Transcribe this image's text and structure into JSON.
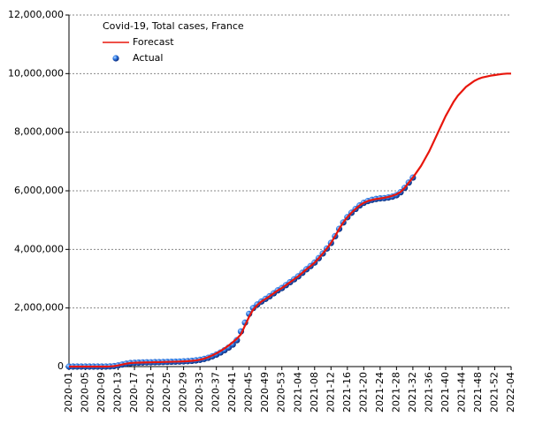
{
  "chart_data": {
    "type": "line",
    "title": "Covid-19, Total cases, France",
    "categories": [
      "2020-01",
      null,
      null,
      null,
      "2020-05",
      null,
      null,
      null,
      "2020-09",
      null,
      null,
      null,
      "2020-13",
      null,
      null,
      null,
      "2020-17",
      null,
      null,
      null,
      "2020-21",
      null,
      null,
      null,
      "2020-25",
      null,
      null,
      null,
      "2020-29",
      null,
      null,
      null,
      "2020-33",
      null,
      null,
      null,
      "2020-37",
      null,
      null,
      null,
      "2020-41",
      null,
      null,
      null,
      "2020-45",
      null,
      null,
      null,
      "2020-49",
      null,
      null,
      null,
      "2020-53",
      null,
      null,
      null,
      "2021-04",
      null,
      null,
      null,
      "2021-08",
      null,
      null,
      null,
      "2021-12",
      null,
      null,
      null,
      "2021-16",
      null,
      null,
      null,
      "2021-20",
      null,
      null,
      null,
      "2021-24",
      null,
      null,
      null,
      "2021-28",
      null,
      null,
      null,
      "2021-32",
      null,
      null,
      null,
      "2021-36",
      null,
      null,
      null,
      "2021-40",
      null,
      null,
      null,
      "2021-44",
      null,
      null,
      null,
      "2021-48",
      null,
      null,
      null,
      "2021-52",
      null,
      null,
      null,
      "2022-04"
    ],
    "series": [
      {
        "name": "Forecast",
        "mode": "line",
        "color": "#e8160c",
        "values": [
          0,
          0,
          0,
          0,
          0,
          0,
          0,
          0,
          100,
          1000,
          5000,
          16000,
          40000,
          70000,
          100000,
          120000,
          130000,
          135000,
          140000,
          143000,
          145000,
          150000,
          153000,
          157000,
          160000,
          164000,
          168000,
          172000,
          178000,
          185000,
          195000,
          210000,
          235000,
          270000,
          320000,
          380000,
          450000,
          530000,
          620000,
          720000,
          830000,
          950000,
          1100000,
          1400000,
          1700000,
          1950000,
          2100000,
          2220000,
          2310000,
          2400000,
          2500000,
          2600000,
          2680000,
          2780000,
          2880000,
          2980000,
          3080000,
          3200000,
          3320000,
          3430000,
          3550000,
          3700000,
          3860000,
          4030000,
          4220000,
          4450000,
          4700000,
          4920000,
          5100000,
          5250000,
          5380000,
          5500000,
          5590000,
          5650000,
          5690000,
          5720000,
          5740000,
          5760000,
          5790000,
          5830000,
          5880000,
          5960000,
          6100000,
          6280000,
          6450000,
          6650000,
          6850000,
          7100000,
          7350000,
          7650000,
          7950000,
          8250000,
          8550000,
          8800000,
          9050000,
          9250000,
          9400000,
          9550000,
          9650000,
          9750000,
          9820000,
          9870000,
          9900000,
          9930000,
          9950000,
          9970000,
          9990000,
          10000000,
          10000000
        ]
      },
      {
        "name": "Actual",
        "mode": "markers",
        "color": "#1e5fd8",
        "values": [
          0,
          0,
          0,
          0,
          0,
          0,
          0,
          0,
          100,
          1000,
          5000,
          16000,
          40000,
          70000,
          100000,
          120000,
          130000,
          135000,
          140000,
          143000,
          145000,
          150000,
          153000,
          157000,
          160000,
          164000,
          168000,
          172000,
          178000,
          185000,
          195000,
          210000,
          230000,
          260000,
          300000,
          350000,
          410000,
          480000,
          560000,
          650000,
          750000,
          900000,
          1200000,
          1500000,
          1800000,
          2000000,
          2120000,
          2220000,
          2310000,
          2400000,
          2500000,
          2600000,
          2680000,
          2780000,
          2880000,
          2980000,
          3080000,
          3200000,
          3320000,
          3430000,
          3550000,
          3700000,
          3860000,
          4030000,
          4220000,
          4450000,
          4700000,
          4920000,
          5100000,
          5250000,
          5380000,
          5500000,
          5590000,
          5650000,
          5690000,
          5720000,
          5740000,
          5750000,
          5770000,
          5800000,
          5850000,
          5950000,
          6100000,
          6280000,
          6450000,
          null,
          null,
          null,
          null,
          null,
          null,
          null,
          null,
          null,
          null,
          null,
          null,
          null,
          null,
          null,
          null,
          null,
          null,
          null,
          null,
          null,
          null,
          null,
          null
        ]
      }
    ],
    "ylim": [
      0,
      12000000
    ],
    "yticks": [
      0,
      {
        "value": 2000000,
        "label": "2,000,000"
      },
      {
        "value": 4000000,
        "label": "4,000,000"
      },
      {
        "value": 6000000,
        "label": "6,000,000"
      },
      {
        "value": 8000000,
        "label": "8,000,000"
      },
      {
        "value": 10000000,
        "label": "10,000,000"
      },
      {
        "value": 12000000,
        "label": "12,000,000"
      }
    ],
    "grid": true
  }
}
